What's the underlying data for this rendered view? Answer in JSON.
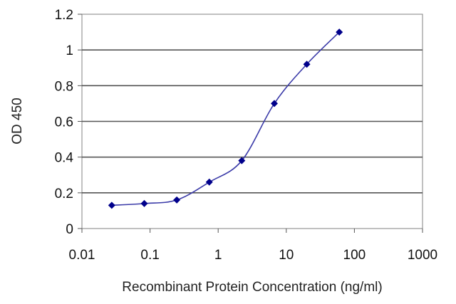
{
  "chart_data": {
    "type": "line",
    "xlabel": "Recombinant Protein Concentration (ng/ml)",
    "ylabel": "OD 450",
    "x_scale": "log",
    "xlim": [
      0.01,
      1000
    ],
    "ylim": [
      0,
      1.2
    ],
    "x_ticks": [
      0.01,
      0.1,
      1,
      10,
      100,
      1000
    ],
    "x_tick_labels": [
      "0.01",
      "0.1",
      "1",
      "10",
      "100",
      "1000"
    ],
    "y_ticks": [
      0,
      0.2,
      0.4,
      0.6,
      0.8,
      1,
      1.2
    ],
    "y_tick_labels": [
      "0",
      "0.2",
      "0.4",
      "0.6",
      "0.8",
      "1",
      "1.2"
    ],
    "grid": "horizontal",
    "series": [
      {
        "color": "#00008b",
        "line_color": "#3a3aa8",
        "x": [
          0.0274,
          0.0823,
          0.247,
          0.741,
          2.22,
          6.67,
          20,
          60
        ],
        "y": [
          0.13,
          0.14,
          0.16,
          0.26,
          0.38,
          0.7,
          0.92,
          1.1
        ]
      }
    ]
  }
}
